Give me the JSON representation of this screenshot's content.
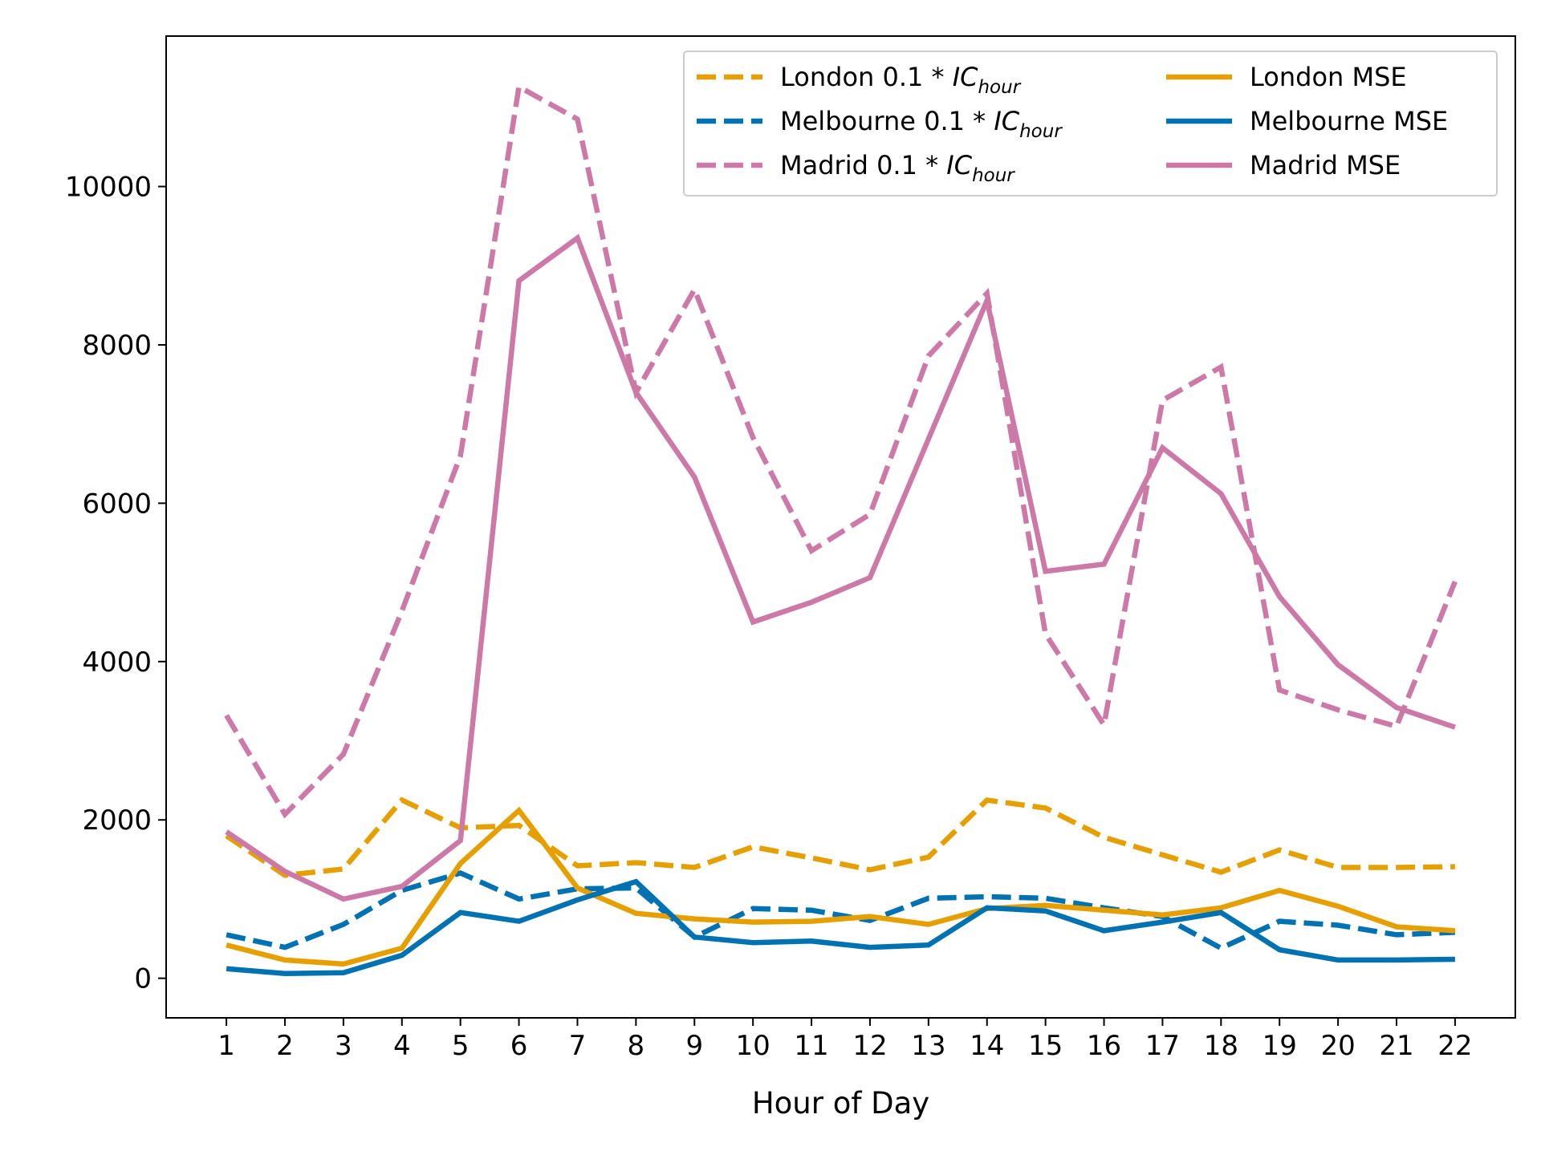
{
  "chart_data": {
    "type": "line",
    "xlabel": "Hour of Day",
    "ylabel": "",
    "title": "",
    "x": [
      1,
      2,
      3,
      4,
      5,
      6,
      7,
      8,
      9,
      10,
      11,
      12,
      13,
      14,
      15,
      16,
      17,
      18,
      19,
      20,
      21,
      22
    ],
    "xlim": [
      -0.03,
      23.03
    ],
    "ylim": [
      -500,
      11900
    ],
    "yticks": [
      0,
      2000,
      4000,
      6000,
      8000,
      10000
    ],
    "xtick_labels": [
      "1",
      "2",
      "3",
      "4",
      "5",
      "6",
      "7",
      "8",
      "9",
      "10",
      "11",
      "12",
      "13",
      "14",
      "15",
      "16",
      "17",
      "18",
      "19",
      "20",
      "21",
      "22"
    ],
    "ytick_labels": [
      "0",
      "2000",
      "4000",
      "6000",
      "8000",
      "10000"
    ],
    "grid": false,
    "legend_placement": "top-right",
    "series": [
      {
        "name": "London 0.1 * IC_hour",
        "legend_prefix": "London ",
        "legend_math": "0.1 * IC",
        "legend_sub": "hour",
        "style": "dashed",
        "color": "#E69F00",
        "values": [
          1800,
          1300,
          1380,
          2250,
          1900,
          1930,
          1420,
          1460,
          1400,
          1660,
          1520,
          1370,
          1530,
          2250,
          2150,
          1780,
          1560,
          1340,
          1620,
          1400,
          1400,
          1410
        ]
      },
      {
        "name": "Melbourne 0.1 * IC_hour",
        "legend_prefix": "Melbourne ",
        "legend_math": "0.1 * IC",
        "legend_sub": "hour",
        "style": "dashed",
        "color": "#0072B2",
        "values": [
          550,
          390,
          680,
          1110,
          1330,
          1000,
          1130,
          1140,
          520,
          880,
          860,
          730,
          1010,
          1030,
          1010,
          890,
          780,
          380,
          720,
          670,
          550,
          580
        ]
      },
      {
        "name": "Madrid 0.1 * IC_hour",
        "legend_prefix": "Madrid ",
        "legend_math": "0.1 * IC",
        "legend_sub": "hour",
        "style": "dashed",
        "color": "#CC79A7",
        "values": [
          3320,
          2070,
          2830,
          4640,
          6600,
          11260,
          10850,
          7400,
          8700,
          6830,
          5400,
          5860,
          7860,
          8650,
          4350,
          3200,
          7300,
          7720,
          3640,
          3390,
          3180,
          5010
        ]
      },
      {
        "name": "London MSE",
        "legend_prefix": "London MSE",
        "style": "solid",
        "color": "#E69F00",
        "values": [
          420,
          230,
          180,
          380,
          1450,
          2120,
          1140,
          820,
          750,
          710,
          720,
          780,
          680,
          880,
          920,
          860,
          800,
          890,
          1110,
          910,
          650,
          600
        ]
      },
      {
        "name": "Melbourne MSE",
        "legend_prefix": "Melbourne MSE",
        "style": "solid",
        "color": "#0072B2",
        "values": [
          120,
          60,
          70,
          290,
          830,
          720,
          990,
          1220,
          520,
          450,
          470,
          390,
          420,
          890,
          850,
          600,
          710,
          830,
          360,
          230,
          230,
          240
        ]
      },
      {
        "name": "Madrid MSE",
        "legend_prefix": "Madrid MSE",
        "style": "solid",
        "color": "#CC79A7",
        "values": [
          1850,
          1350,
          1000,
          1160,
          1740,
          8810,
          9350,
          7400,
          6330,
          4500,
          4750,
          5060,
          6810,
          8560,
          5140,
          5230,
          6700,
          6120,
          4820,
          3960,
          3420,
          3170
        ]
      }
    ]
  }
}
